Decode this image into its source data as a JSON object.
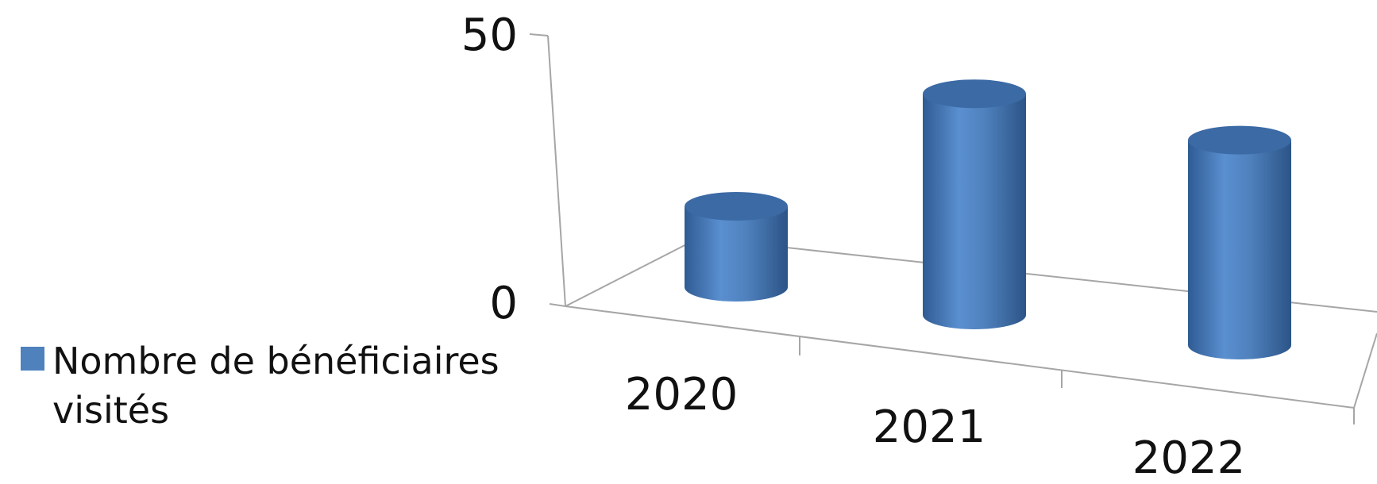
{
  "chart_data": {
    "type": "bar",
    "style": "3d-cylinder",
    "categories": [
      "2020",
      "2021",
      "2022"
    ],
    "series": [
      {
        "name": "Nombre de bénéficiaires visités",
        "values": [
          15,
          41,
          38
        ],
        "color": "#4f81bd"
      }
    ],
    "ylim": [
      0,
      50
    ],
    "yticks": [
      "0",
      "50"
    ],
    "grid": false,
    "legend_position": "left"
  }
}
